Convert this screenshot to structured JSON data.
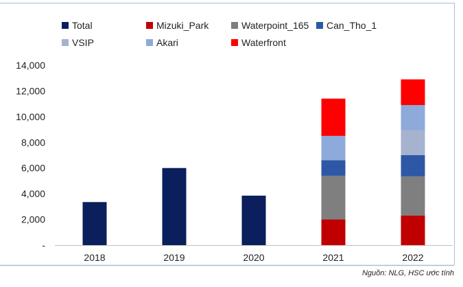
{
  "chart_data": {
    "type": "bar",
    "stacked": true,
    "categories": [
      "2018",
      "2019",
      "2020",
      "2021",
      "2022"
    ],
    "series": [
      {
        "name": "Total",
        "color": "#0a1f5c",
        "values": [
          3350,
          6000,
          3850,
          0,
          0
        ]
      },
      {
        "name": "Mizuki_Park",
        "color": "#c00000",
        "values": [
          0,
          0,
          0,
          2000,
          2300
        ]
      },
      {
        "name": "Waterpoint_165",
        "color": "#7f7f7f",
        "values": [
          0,
          0,
          0,
          3400,
          3050
        ]
      },
      {
        "name": "Can_Tho_1",
        "color": "#2e58a6",
        "values": [
          0,
          0,
          0,
          1200,
          1650
        ]
      },
      {
        "name": "VSIP",
        "color": "#a6b3cf",
        "values": [
          0,
          0,
          0,
          0,
          1950
        ]
      },
      {
        "name": "Akari",
        "color": "#8eaadb",
        "values": [
          0,
          0,
          0,
          1900,
          1950
        ]
      },
      {
        "name": "Waterfront",
        "color": "#ff0000",
        "values": [
          0,
          0,
          0,
          2900,
          2000
        ]
      }
    ],
    "ylim": [
      0,
      14000
    ],
    "yticks": [
      0,
      2000,
      4000,
      6000,
      8000,
      10000,
      12000,
      14000
    ],
    "ytick_labels": [
      "-",
      "2,000",
      "4,000",
      "6,000",
      "8,000",
      "10,000",
      "12,000",
      "14,000"
    ],
    "grid": false,
    "legend_position": "top",
    "source": "Nguồn: NLG, HSC ước tính"
  },
  "colors": {
    "frame_border": "#a9bcd6",
    "axis": "#bfbfbf"
  }
}
